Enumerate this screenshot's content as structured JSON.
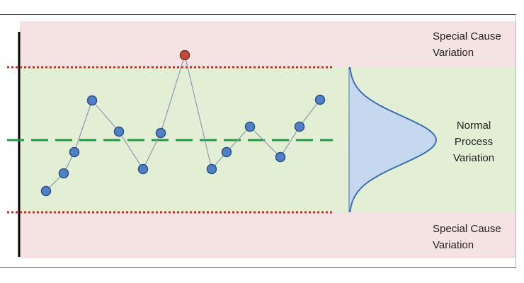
{
  "labels": {
    "upper_zone": [
      "Special Cause",
      "Variation"
    ],
    "middle_zone": [
      "Normal",
      "Process",
      "Variation"
    ],
    "lower_zone": [
      "Special Cause",
      "Variation"
    ]
  },
  "colors": {
    "special_zone": "#f5e3e3",
    "normal_zone": "#e3efd4",
    "control_limit": "#c0302a",
    "center_line": "#1f9a48",
    "point": "#4f7fc4",
    "point_outline": "#2d4f85",
    "special_point": "#c24a3e",
    "distribution_fill": "#c6d8ef",
    "distribution_line": "#3d6fae",
    "axis": "#000000"
  }
}
